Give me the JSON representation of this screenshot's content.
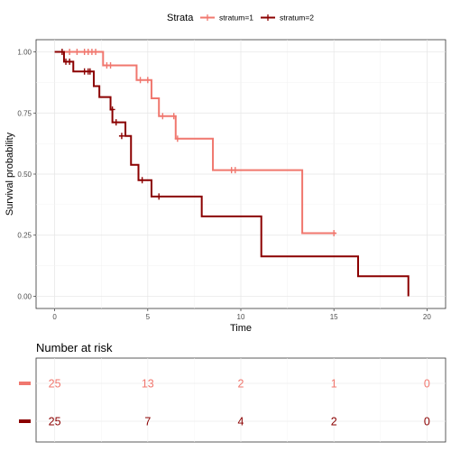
{
  "chart_data": [
    {
      "type": "line",
      "subtype": "kaplan-meier-step",
      "legend": {
        "title": "Strata",
        "position": "top"
      },
      "xlabel": "Time",
      "ylabel": "Survival probability",
      "xlim": [
        -1,
        21
      ],
      "ylim": [
        -0.05,
        1.05
      ],
      "x_ticks": [
        0,
        5,
        10,
        15,
        20
      ],
      "x_tick_labels": [
        "0",
        "5",
        "10",
        "15",
        "20"
      ],
      "y_ticks": [
        0,
        0.25,
        0.5,
        0.75,
        1.0
      ],
      "y_tick_labels": [
        "0.00",
        "0.25",
        "0.50",
        "0.75",
        "1.00"
      ],
      "grid": true,
      "series": [
        {
          "name": "stratum=1",
          "color": "#F0776E",
          "steps": [
            [
              0,
              1.0
            ],
            [
              2.6,
              0.945
            ],
            [
              4.4,
              0.885
            ],
            [
              5.2,
              0.81
            ],
            [
              5.6,
              0.737
            ],
            [
              6.5,
              0.645
            ],
            [
              8.5,
              0.516
            ],
            [
              13.3,
              0.258
            ]
          ],
          "end_x": 15.1,
          "censor": [
            [
              0.8,
              1.0
            ],
            [
              1.2,
              1.0
            ],
            [
              1.6,
              1.0
            ],
            [
              1.8,
              1.0
            ],
            [
              2.0,
              1.0
            ],
            [
              2.2,
              1.0
            ],
            [
              2.8,
              0.945
            ],
            [
              3.0,
              0.945
            ],
            [
              4.6,
              0.885
            ],
            [
              5.0,
              0.885
            ],
            [
              5.8,
              0.737
            ],
            [
              6.4,
              0.737
            ],
            [
              6.6,
              0.645
            ],
            [
              9.5,
              0.516
            ],
            [
              9.7,
              0.516
            ],
            [
              15.0,
              0.258
            ]
          ]
        },
        {
          "name": "stratum=2",
          "color": "#8B0000",
          "steps": [
            [
              0,
              1.0
            ],
            [
              0.5,
              0.96
            ],
            [
              1.0,
              0.92
            ],
            [
              2.1,
              0.86
            ],
            [
              2.4,
              0.815
            ],
            [
              3.0,
              0.764
            ],
            [
              3.1,
              0.712
            ],
            [
              3.8,
              0.656
            ],
            [
              4.1,
              0.538
            ],
            [
              4.5,
              0.475
            ],
            [
              5.2,
              0.408
            ],
            [
              7.9,
              0.327
            ],
            [
              11.1,
              0.163
            ],
            [
              16.3,
              0.082
            ],
            [
              19.0,
              0.0
            ]
          ],
          "end_x": 19.0,
          "censor": [
            [
              0.4,
              1.0
            ],
            [
              0.6,
              0.96
            ],
            [
              0.8,
              0.96
            ],
            [
              1.6,
              0.92
            ],
            [
              1.8,
              0.92
            ],
            [
              1.9,
              0.92
            ],
            [
              3.1,
              0.764
            ],
            [
              3.3,
              0.712
            ],
            [
              3.6,
              0.656
            ],
            [
              4.7,
              0.475
            ],
            [
              5.6,
              0.408
            ]
          ]
        }
      ]
    },
    {
      "type": "table",
      "title": "Number at risk",
      "time_points": [
        0,
        5,
        10,
        15,
        20
      ],
      "rows": [
        {
          "name": "stratum=1",
          "color": "#F0776E",
          "values": [
            "25",
            "13",
            "2",
            "1",
            "0"
          ]
        },
        {
          "name": "stratum=2",
          "color": "#8B0000",
          "values": [
            "25",
            "7",
            "4",
            "2",
            "0"
          ]
        }
      ]
    }
  ]
}
